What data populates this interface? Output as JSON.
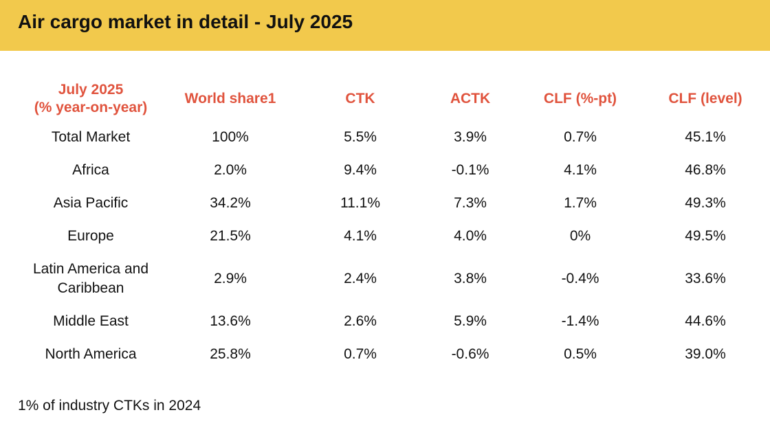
{
  "header": {
    "title": "Air cargo market in detail - July 2025",
    "background_color": "#f2c94c"
  },
  "table": {
    "header_color": "#e0533d",
    "columns": {
      "region_line1": "July 2025",
      "region_line2": "(% year-on-year)",
      "world_share": "World share1",
      "ctk": "CTK",
      "actk": "ACTK",
      "clf_pt": "CLF (%-pt)",
      "clf_level": "CLF (level)"
    },
    "rows": [
      {
        "region": "Total Market",
        "world_share": "100%",
        "ctk": "5.5%",
        "actk": "3.9%",
        "clf_pt": "0.7%",
        "clf_level": "45.1%"
      },
      {
        "region": "Africa",
        "world_share": "2.0%",
        "ctk": "9.4%",
        "actk": "-0.1%",
        "clf_pt": "4.1%",
        "clf_level": "46.8%"
      },
      {
        "region": "Asia Pacific",
        "world_share": "34.2%",
        "ctk": "11.1%",
        "actk": "7.3%",
        "clf_pt": "1.7%",
        "clf_level": "49.3%"
      },
      {
        "region": "Europe",
        "world_share": "21.5%",
        "ctk": "4.1%",
        "actk": "4.0%",
        "clf_pt": "0%",
        "clf_level": "49.5%"
      },
      {
        "region_line1": "Latin America and",
        "region_line2": "Caribbean",
        "world_share": "2.9%",
        "ctk": "2.4%",
        "actk": "3.8%",
        "clf_pt": "-0.4%",
        "clf_level": "33.6%"
      },
      {
        "region": "Middle East",
        "world_share": "13.6%",
        "ctk": "2.6%",
        "actk": "5.9%",
        "clf_pt": "-1.4%",
        "clf_level": "44.6%"
      },
      {
        "region": "North America",
        "world_share": "25.8%",
        "ctk": "0.7%",
        "actk": "-0.6%",
        "clf_pt": "0.5%",
        "clf_level": "39.0%"
      }
    ]
  },
  "footnote": "1% of industry CTKs in 2024"
}
